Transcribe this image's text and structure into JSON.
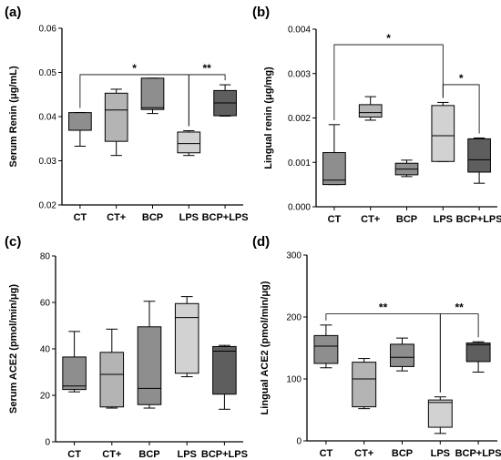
{
  "chart_data": [
    {
      "panel": "(a)",
      "type": "box",
      "ylabel": "Serum Renin (μg/mL)",
      "ylim": [
        0.02,
        0.06
      ],
      "yticks": [
        "0.02",
        "0.03",
        "0.04",
        "0.05",
        "0.06"
      ],
      "categories": [
        "CT",
        "CT+",
        "BCP",
        "LPS",
        "BCP+LPS"
      ],
      "colors": [
        "#8e8e8e",
        "#b4b4b4",
        "#8e8e8e",
        "#d2d2d2",
        "#5e5e5e"
      ],
      "boxes": [
        {
          "min": 0.0333,
          "q1": 0.0369,
          "median": 0.0369,
          "q3": 0.0409,
          "max": 0.0409
        },
        {
          "min": 0.0312,
          "q1": 0.0344,
          "median": 0.0415,
          "q3": 0.0453,
          "max": 0.0462
        },
        {
          "min": 0.0407,
          "q1": 0.0416,
          "median": 0.042,
          "q3": 0.0487,
          "max": 0.0487
        },
        {
          "min": 0.0312,
          "q1": 0.0318,
          "median": 0.0339,
          "q3": 0.0365,
          "max": 0.0368
        },
        {
          "min": 0.0401,
          "q1": 0.0402,
          "median": 0.0431,
          "q3": 0.0459,
          "max": 0.0472
        }
      ],
      "significance": [
        {
          "from": 0,
          "to": 3,
          "label": "*",
          "y": 0.0495
        },
        {
          "from": 3,
          "to": 4,
          "label": "**",
          "y": 0.0495
        }
      ]
    },
    {
      "panel": "(b)",
      "type": "box",
      "ylabel": "Lingual renin (μg/mg)",
      "ylim": [
        0,
        0.004
      ],
      "yticks": [
        "0.000",
        "0.001",
        "0.002",
        "0.003",
        "0.004"
      ],
      "categories": [
        "CT",
        "CT+",
        "BCP",
        "LPS",
        "BCP+LPS"
      ],
      "colors": [
        "#8e8e8e",
        "#b4b4b4",
        "#8e8e8e",
        "#d2d2d2",
        "#5e5e5e"
      ],
      "boxes": [
        {
          "min": 0.0005,
          "q1": 0.0005,
          "median": 0.0006,
          "q3": 0.00122,
          "max": 0.00185
        },
        {
          "min": 0.00195,
          "q1": 0.00202,
          "median": 0.00212,
          "q3": 0.0023,
          "max": 0.00248
        },
        {
          "min": 0.00068,
          "q1": 0.00072,
          "median": 0.00085,
          "q3": 0.00098,
          "max": 0.00105
        },
        {
          "min": 0.00102,
          "q1": 0.00102,
          "median": 0.0016,
          "q3": 0.00228,
          "max": 0.00235
        },
        {
          "min": 0.00053,
          "q1": 0.00078,
          "median": 0.00106,
          "q3": 0.00153,
          "max": 0.00155
        }
      ],
      "significance": [
        {
          "from": 0,
          "to": 3,
          "label": "*",
          "y": 0.00365
        },
        {
          "from": 3,
          "to": 4,
          "label": "*",
          "y": 0.00275
        }
      ]
    },
    {
      "panel": "(c)",
      "type": "box",
      "ylabel": "Serum ACE2 (pmol/min/μg)",
      "ylim": [
        0,
        80
      ],
      "yticks": [
        "0",
        "20",
        "40",
        "60",
        "80"
      ],
      "categories": [
        "CT",
        "CT+",
        "BCP",
        "LPS",
        "BCP+LPS"
      ],
      "colors": [
        "#8e8e8e",
        "#b4b4b4",
        "#8e8e8e",
        "#d2d2d2",
        "#5e5e5e"
      ],
      "boxes": [
        {
          "min": 21.5,
          "q1": 22.5,
          "median": 24.0,
          "q3": 36.5,
          "max": 47.5
        },
        {
          "min": 14.5,
          "q1": 15.0,
          "median": 29.0,
          "q3": 38.5,
          "max": 48.5
        },
        {
          "min": 14.5,
          "q1": 16.0,
          "median": 23.0,
          "q3": 49.5,
          "max": 60.5
        },
        {
          "min": 28.0,
          "q1": 29.5,
          "median": 53.5,
          "q3": 59.5,
          "max": 62.5
        },
        {
          "min": 14.0,
          "q1": 20.5,
          "median": 39.0,
          "q3": 41.0,
          "max": 41.5
        }
      ],
      "significance": []
    },
    {
      "panel": "(d)",
      "type": "box",
      "ylabel": "Lingual ACE2 (pmol/min/μg)",
      "ylim": [
        0,
        300
      ],
      "yticks": [
        "0",
        "100",
        "200",
        "300"
      ],
      "categories": [
        "CT",
        "CT+",
        "BCP",
        "LPS",
        "BCP+LPS"
      ],
      "colors": [
        "#8e8e8e",
        "#b4b4b4",
        "#8e8e8e",
        "#d2d2d2",
        "#5e5e5e"
      ],
      "boxes": [
        {
          "min": 118,
          "q1": 125,
          "median": 153,
          "q3": 170,
          "max": 187
        },
        {
          "min": 52,
          "q1": 55,
          "median": 100,
          "q3": 127,
          "max": 133
        },
        {
          "min": 113,
          "q1": 120,
          "median": 135,
          "q3": 156,
          "max": 166
        },
        {
          "min": 12,
          "q1": 22,
          "median": 62,
          "q3": 66,
          "max": 71
        },
        {
          "min": 111,
          "q1": 128,
          "median": 155,
          "q3": 158,
          "max": 160
        }
      ],
      "significance": [
        {
          "from": 0,
          "to": 3,
          "label": "**",
          "y": 205
        },
        {
          "from": 3,
          "to": 4,
          "label": "**",
          "y": 205
        }
      ]
    }
  ]
}
